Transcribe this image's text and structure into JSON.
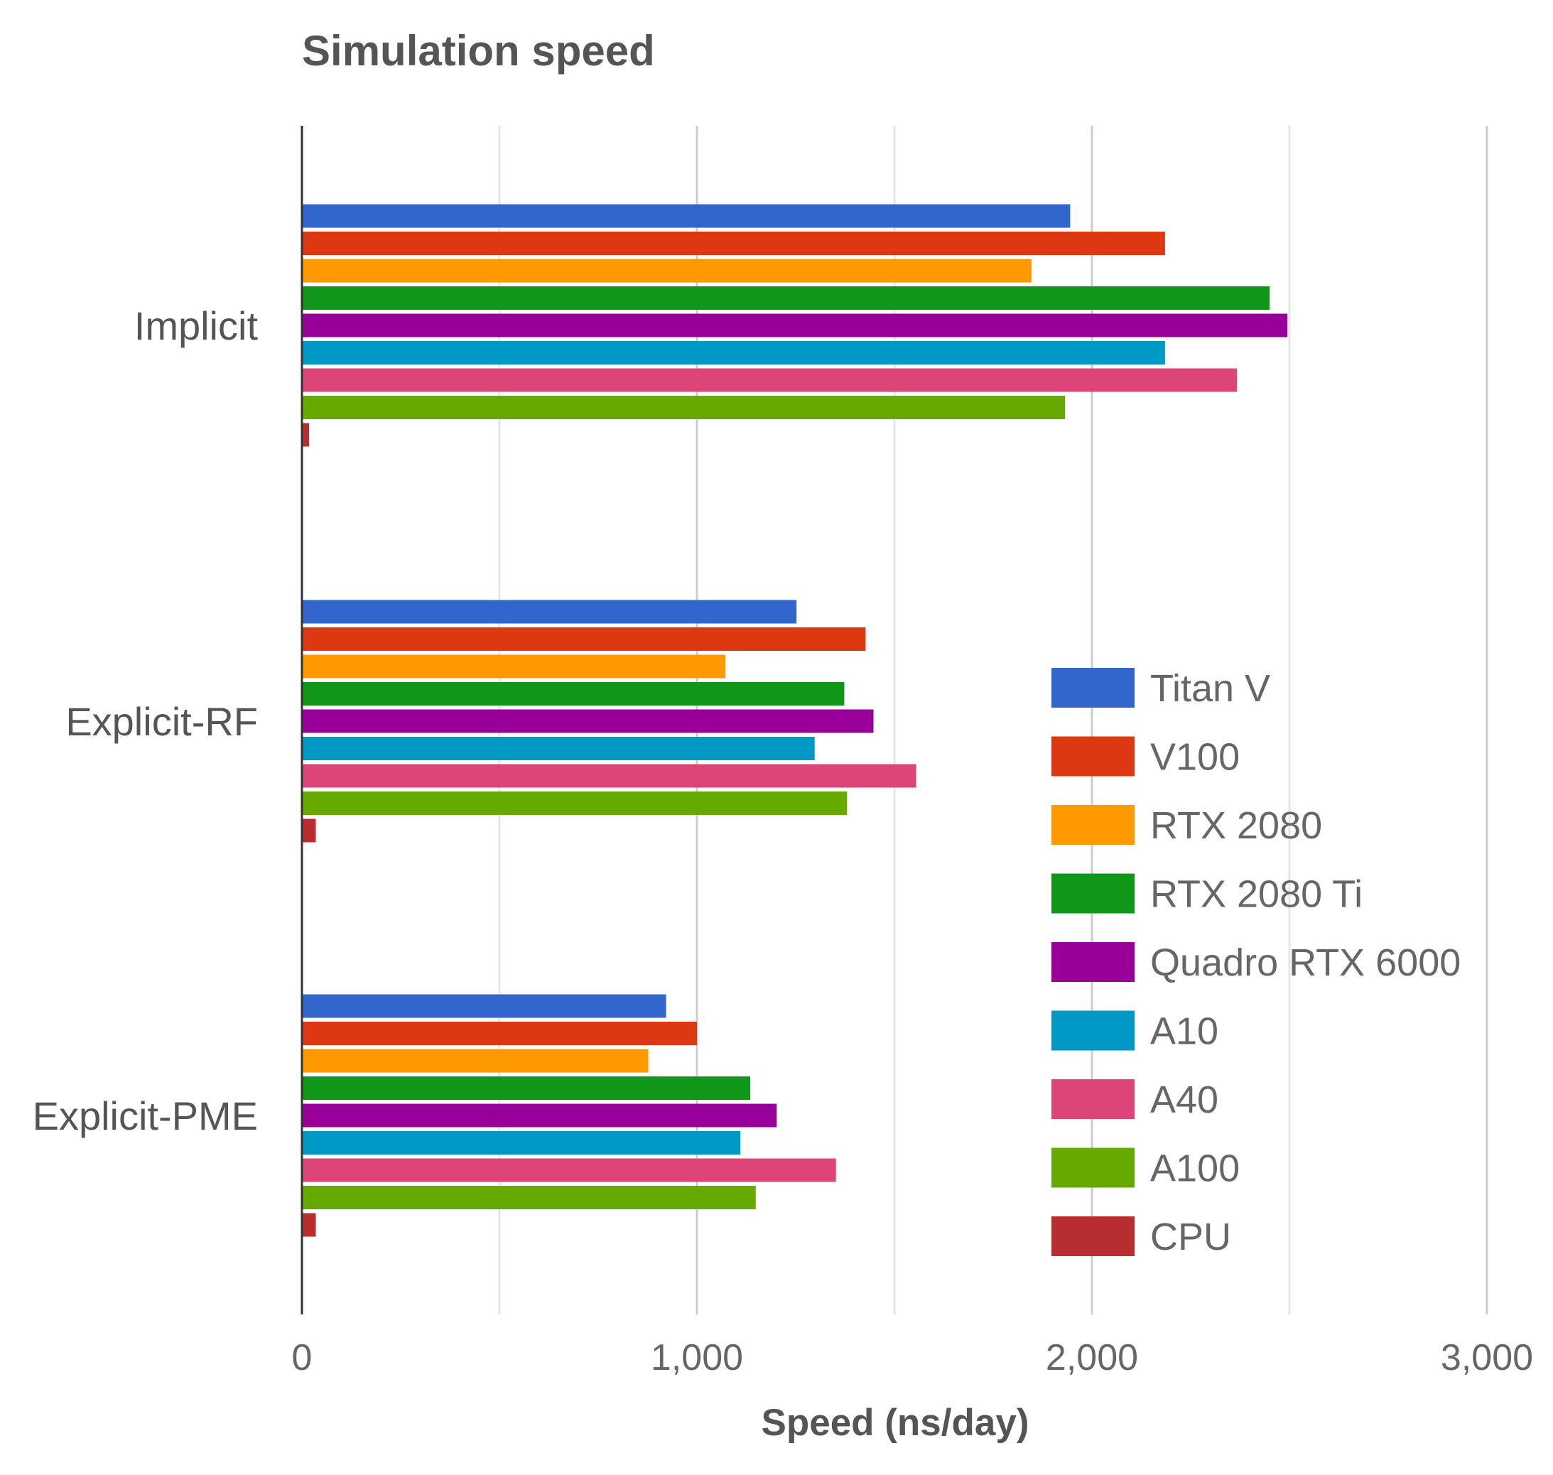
{
  "chart_data": {
    "type": "bar",
    "orientation": "horizontal",
    "title": "Simulation speed",
    "xlabel": "Speed (ns/day)",
    "ylabel": "",
    "xlim": [
      0,
      3000
    ],
    "x_ticks": [
      0,
      1000,
      2000,
      3000
    ],
    "x_tick_labels": [
      "0",
      "1,000",
      "2,000",
      "3,000"
    ],
    "minor_gridlines": [
      500,
      1500,
      2500
    ],
    "grid": true,
    "legend_position": "right",
    "categories": [
      "Implicit",
      "Explicit-RF",
      "Explicit-PME"
    ],
    "series": [
      {
        "name": "Titan V",
        "color": "#3366cc",
        "values": [
          1945,
          1252,
          922
        ]
      },
      {
        "name": "V100",
        "color": "#dc3912",
        "values": [
          2185,
          1427,
          1000
        ]
      },
      {
        "name": "RTX 2080",
        "color": "#ff9900",
        "values": [
          1847,
          1072,
          877
        ]
      },
      {
        "name": "RTX 2080 Ti",
        "color": "#109618",
        "values": [
          2450,
          1373,
          1135
        ]
      },
      {
        "name": "Quadro RTX 6000",
        "color": "#990099",
        "values": [
          2495,
          1447,
          1202
        ]
      },
      {
        "name": "A10",
        "color": "#0099c6",
        "values": [
          2185,
          1298,
          1110
        ]
      },
      {
        "name": "A40",
        "color": "#dd4477",
        "values": [
          2367,
          1555,
          1352
        ]
      },
      {
        "name": "A100",
        "color": "#66aa00",
        "values": [
          1932,
          1380,
          1149
        ]
      },
      {
        "name": "CPU",
        "color": "#b82e2e",
        "values": [
          18,
          35,
          35
        ]
      }
    ]
  }
}
